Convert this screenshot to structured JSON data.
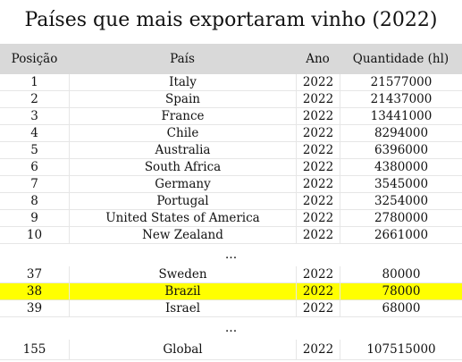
{
  "title": "Países que mais exportaram vinho (2022)",
  "headers": {
    "pos": "Posição",
    "pais": "País",
    "ano": "Ano",
    "qtd": "Quantidade (hl)"
  },
  "rows": [
    {
      "pos": "1",
      "pais": "Italy",
      "ano": "2022",
      "qtd": "21577000"
    },
    {
      "pos": "2",
      "pais": "Spain",
      "ano": "2022",
      "qtd": "21437000"
    },
    {
      "pos": "3",
      "pais": "France",
      "ano": "2022",
      "qtd": "13441000"
    },
    {
      "pos": "4",
      "pais": "Chile",
      "ano": "2022",
      "qtd": "8294000"
    },
    {
      "pos": "5",
      "pais": "Australia",
      "ano": "2022",
      "qtd": "6396000"
    },
    {
      "pos": "6",
      "pais": "South Africa",
      "ano": "2022",
      "qtd": "4380000"
    },
    {
      "pos": "7",
      "pais": "Germany",
      "ano": "2022",
      "qtd": "3545000"
    },
    {
      "pos": "8",
      "pais": "Portugal",
      "ano": "2022",
      "qtd": "3254000"
    },
    {
      "pos": "9",
      "pais": "United States of America",
      "ano": "2022",
      "qtd": "2780000"
    },
    {
      "pos": "10",
      "pais": "New Zealand",
      "ano": "2022",
      "qtd": "2661000"
    }
  ],
  "ellipsis": "...",
  "rows_mid": [
    {
      "pos": "37",
      "pais": "Sweden",
      "ano": "2022",
      "qtd": "80000"
    },
    {
      "pos": "38",
      "pais": "Brazil",
      "ano": "2022",
      "qtd": "78000"
    },
    {
      "pos": "39",
      "pais": "Israel",
      "ano": "2022",
      "qtd": "68000"
    }
  ],
  "highlight_color": "#ffff00",
  "global": {
    "pos": "155",
    "pais": "Global",
    "ano": "2022",
    "qtd": "107515000"
  }
}
